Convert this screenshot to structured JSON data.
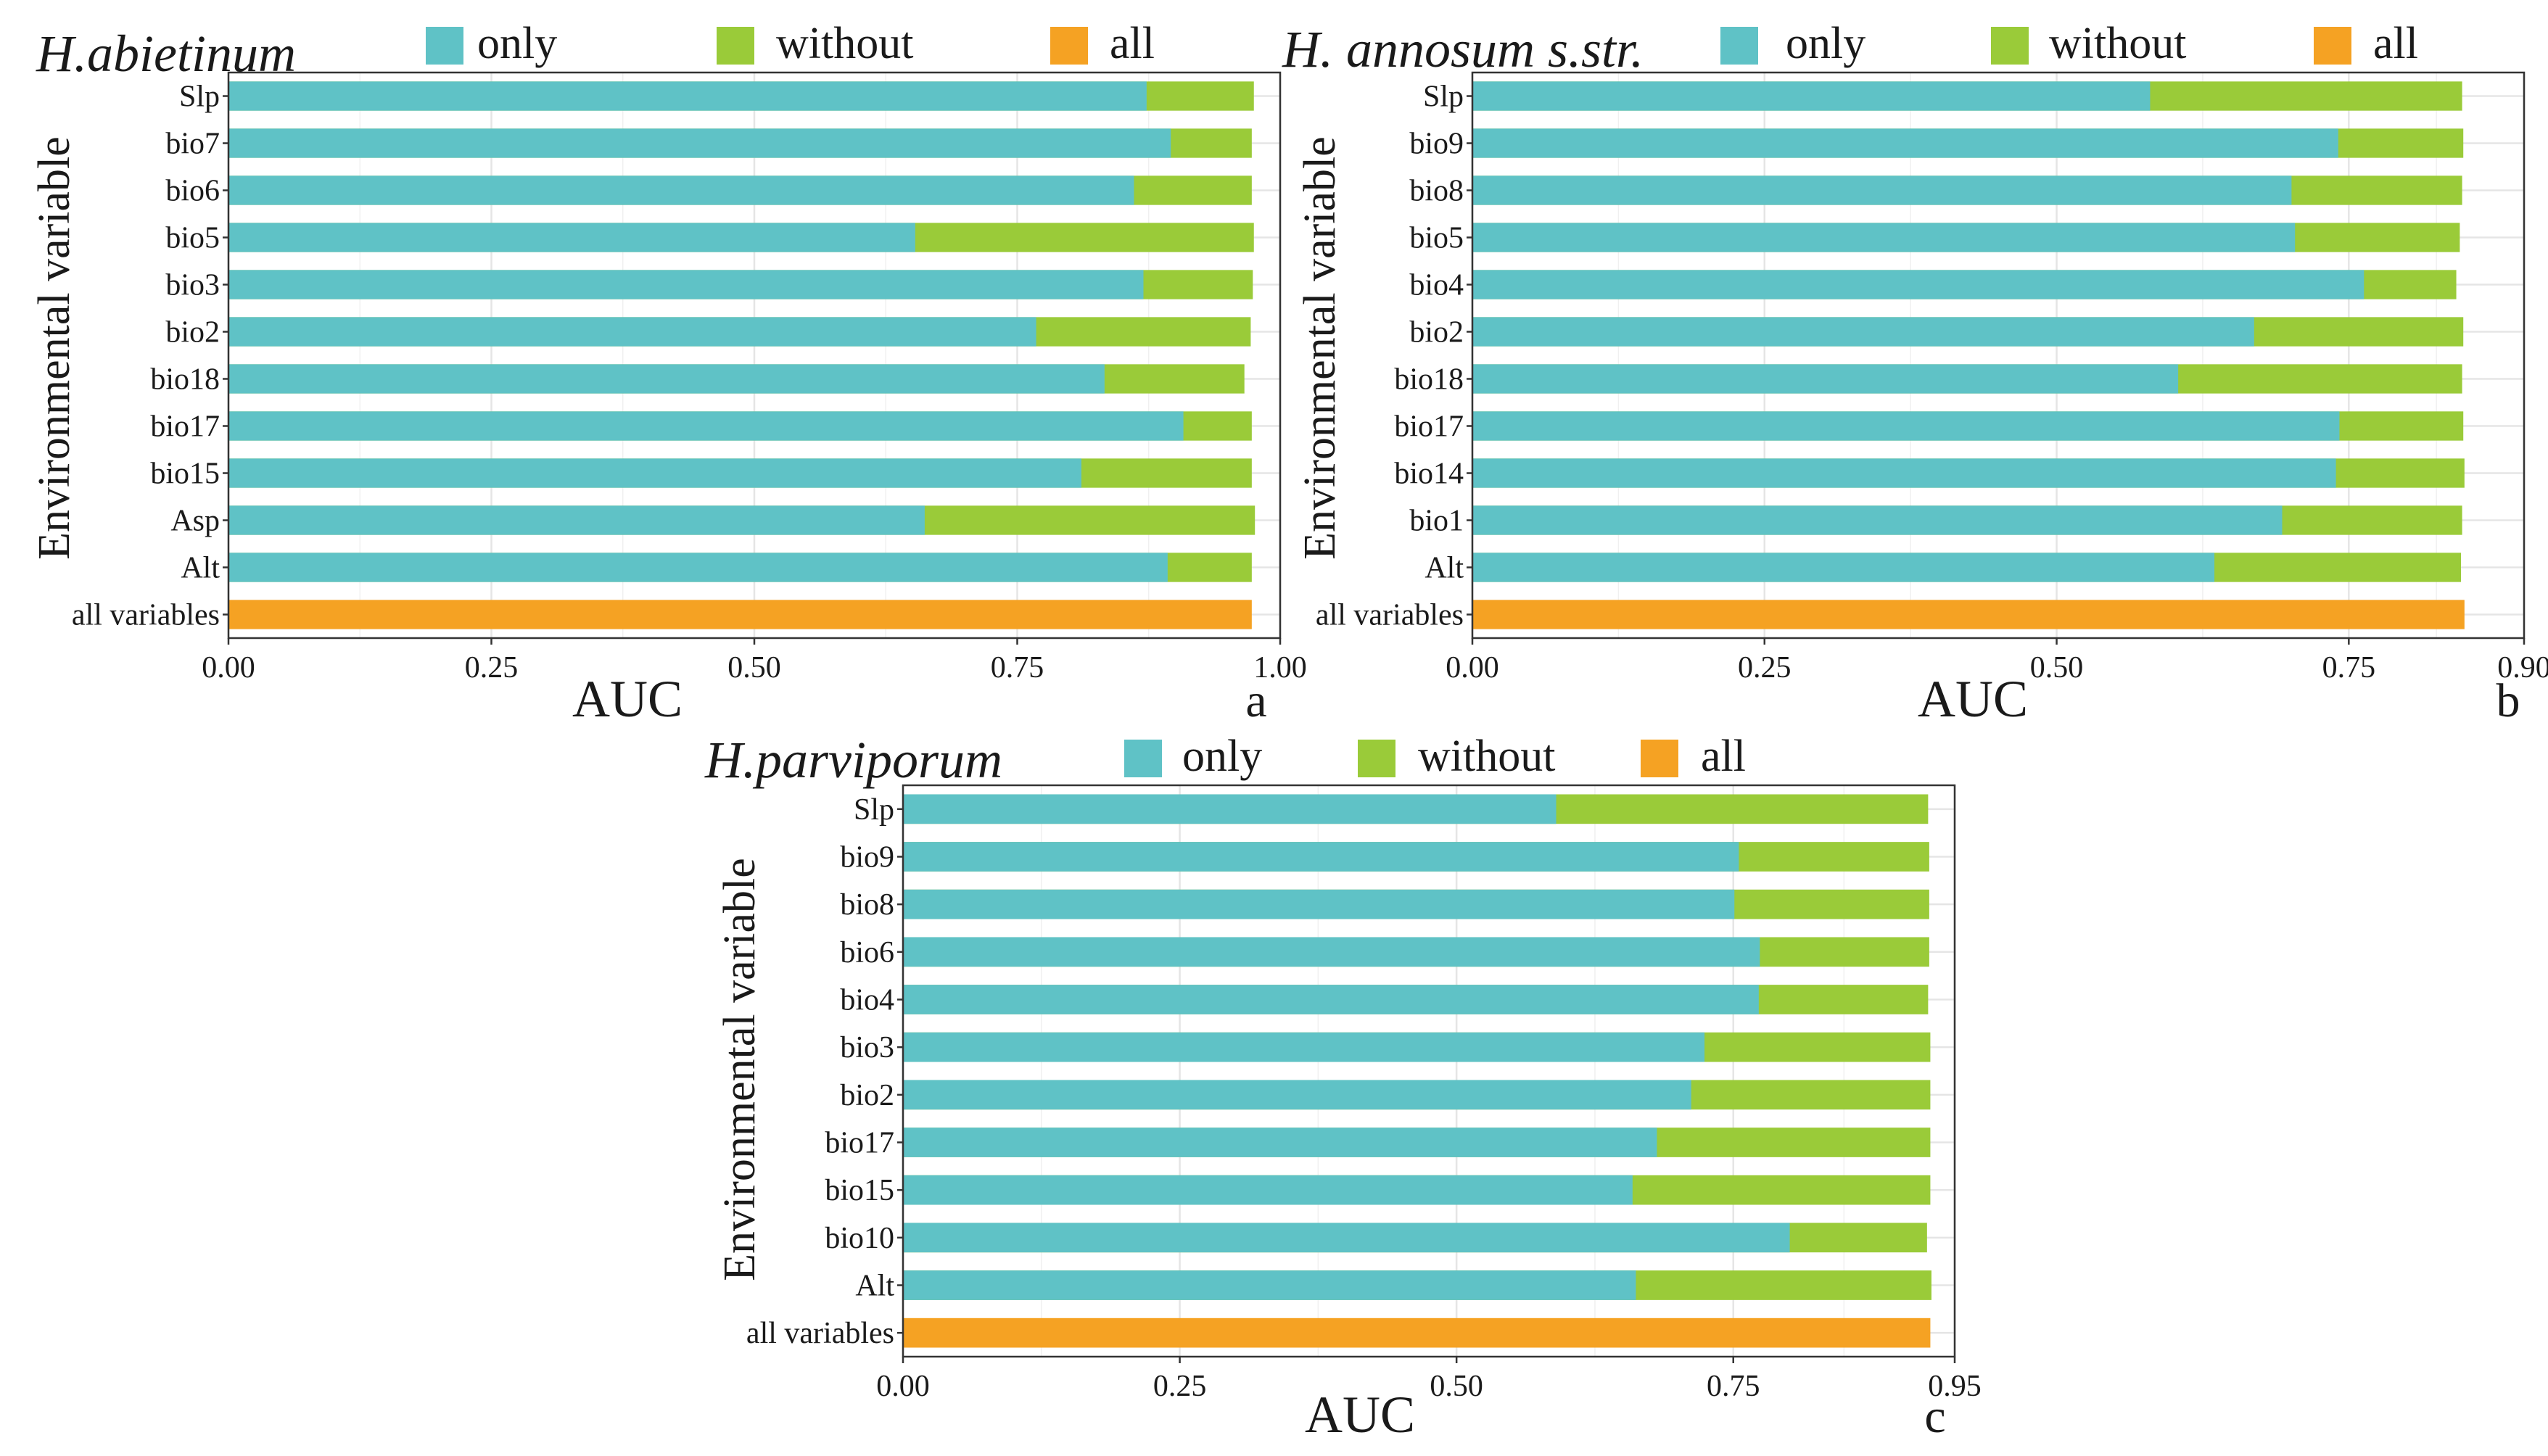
{
  "figure": {
    "colors": {
      "only": "#5fc2c6",
      "without": "#9acb39",
      "all": "#f5a223",
      "grid": "#e5e5e5",
      "axis": "#333333"
    }
  },
  "chart_data": [
    {
      "type": "bar",
      "orientation": "horizontal",
      "panel_label": "a",
      "title": "H.abietinum",
      "title_style": "italic",
      "xlabel": "AUC",
      "ylabel": "Environmental variable",
      "xlim": [
        0,
        1.0
      ],
      "xticks": [
        "0.00",
        "0.25",
        "0.50",
        "0.75",
        "1.00"
      ],
      "xtick_values": [
        0,
        0.25,
        0.5,
        0.75,
        1.0
      ],
      "categories": [
        "Slp",
        "bio7",
        "bio6",
        "bio5",
        "bio3",
        "bio2",
        "bio18",
        "bio17",
        "bio15",
        "Asp",
        "Alt",
        "all variables"
      ],
      "legend": [
        {
          "key": "only",
          "label": "only"
        },
        {
          "key": "without",
          "label": "without"
        },
        {
          "key": "all",
          "label": "all"
        }
      ],
      "series": [
        {
          "name": "without",
          "values": [
            0.975,
            0.973,
            0.973,
            0.975,
            0.974,
            0.972,
            0.966,
            0.973,
            0.973,
            0.976,
            0.973,
            null
          ]
        },
        {
          "name": "only",
          "values": [
            0.873,
            0.896,
            0.861,
            0.653,
            0.87,
            0.768,
            0.833,
            0.908,
            0.811,
            0.662,
            0.893,
            null
          ]
        },
        {
          "name": "all",
          "values": [
            null,
            null,
            null,
            null,
            null,
            null,
            null,
            null,
            null,
            null,
            null,
            0.973
          ]
        }
      ]
    },
    {
      "type": "bar",
      "orientation": "horizontal",
      "panel_label": "b",
      "title": "H. annosum s.str.",
      "title_style": "italic",
      "xlabel": "AUC",
      "ylabel": "Environmental variable",
      "xlim": [
        0,
        0.9
      ],
      "xticks": [
        "0.00",
        "0.25",
        "0.50",
        "0.75",
        "0.90"
      ],
      "xtick_values": [
        0,
        0.25,
        0.5,
        0.75,
        0.9
      ],
      "categories": [
        "Slp",
        "bio9",
        "bio8",
        "bio5",
        "bio4",
        "bio2",
        "bio18",
        "bio17",
        "bio14",
        "bio1",
        "Alt",
        "all variables"
      ],
      "legend": [
        {
          "key": "only",
          "label": "only"
        },
        {
          "key": "without",
          "label": "without"
        },
        {
          "key": "all",
          "label": "all"
        }
      ],
      "series": [
        {
          "name": "without",
          "values": [
            0.847,
            0.848,
            0.847,
            0.845,
            0.842,
            0.848,
            0.847,
            0.848,
            0.849,
            0.847,
            0.846,
            null
          ]
        },
        {
          "name": "only",
          "values": [
            0.58,
            0.741,
            0.701,
            0.704,
            0.763,
            0.669,
            0.604,
            0.742,
            0.739,
            0.693,
            0.635,
            null
          ]
        },
        {
          "name": "all",
          "values": [
            null,
            null,
            null,
            null,
            null,
            null,
            null,
            null,
            null,
            null,
            null,
            0.849
          ]
        }
      ]
    },
    {
      "type": "bar",
      "orientation": "horizontal",
      "panel_label": "c",
      "title": "H.parviporum",
      "title_style": "italic",
      "xlabel": "AUC",
      "ylabel": "Environmental variable",
      "xlim": [
        0,
        0.95
      ],
      "xticks": [
        "0.00",
        "0.25",
        "0.50",
        "0.75",
        "0.95"
      ],
      "xtick_values": [
        0,
        0.25,
        0.5,
        0.75,
        0.95
      ],
      "categories": [
        "Slp",
        "bio9",
        "bio8",
        "bio6",
        "bio4",
        "bio3",
        "bio2",
        "bio17",
        "bio15",
        "bio10",
        "Alt",
        "all variables"
      ],
      "legend": [
        {
          "key": "only",
          "label": "only"
        },
        {
          "key": "without",
          "label": "without"
        },
        {
          "key": "all",
          "label": "all"
        }
      ],
      "series": [
        {
          "name": "without",
          "values": [
            0.926,
            0.927,
            0.927,
            0.927,
            0.926,
            0.928,
            0.928,
            0.928,
            0.928,
            0.925,
            0.929,
            null
          ]
        },
        {
          "name": "only",
          "values": [
            0.59,
            0.755,
            0.751,
            0.774,
            0.773,
            0.724,
            0.712,
            0.681,
            0.659,
            0.801,
            0.662,
            null
          ]
        },
        {
          "name": "all",
          "values": [
            null,
            null,
            null,
            null,
            null,
            null,
            null,
            null,
            null,
            null,
            null,
            0.928
          ]
        }
      ]
    }
  ]
}
